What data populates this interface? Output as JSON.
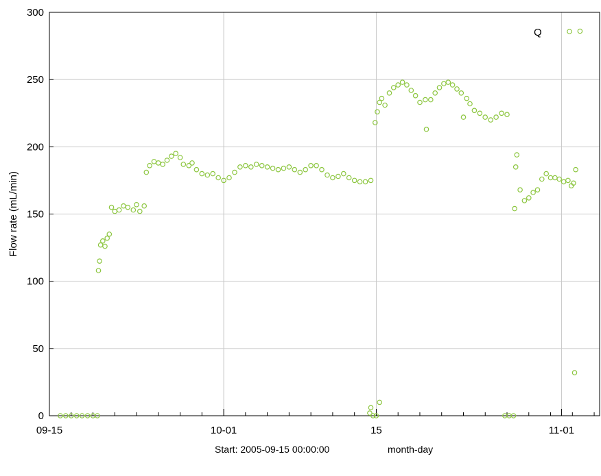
{
  "chart_data": {
    "type": "scatter",
    "title": "",
    "ylabel": "Flow rate (mL/min)",
    "footer": {
      "start_text": "Start: 2005-09-15 00:00:00",
      "unit_text": "month-day"
    },
    "xlim": [
      0,
      50.5
    ],
    "ylim": [
      0,
      300
    ],
    "x_major_ticks": [
      {
        "x": 0,
        "label": "09-15"
      },
      {
        "x": 16,
        "label": "10-01"
      },
      {
        "x": 30,
        "label": "15"
      },
      {
        "x": 47,
        "label": "11-01"
      }
    ],
    "x_minor_ticks": [
      2,
      4,
      6,
      8,
      10,
      12,
      14,
      18,
      20,
      22,
      24,
      26,
      28,
      32,
      34,
      36,
      38,
      40,
      42,
      44,
      46,
      48,
      50
    ],
    "y_ticks": [
      0,
      50,
      100,
      150,
      200,
      250,
      300
    ],
    "grid": true,
    "legend": {
      "position": "top-right"
    },
    "marker_color": "#8cc63f",
    "series": [
      {
        "name": "Q",
        "points": [
          [
            1.0,
            0
          ],
          [
            1.5,
            0
          ],
          [
            2.0,
            0
          ],
          [
            2.5,
            0
          ],
          [
            3.0,
            0
          ],
          [
            3.5,
            0
          ],
          [
            4.0,
            0
          ],
          [
            4.4,
            0
          ],
          [
            4.5,
            108
          ],
          [
            4.6,
            115
          ],
          [
            4.7,
            127
          ],
          [
            4.9,
            130
          ],
          [
            5.1,
            126
          ],
          [
            5.3,
            132
          ],
          [
            5.5,
            135
          ],
          [
            5.7,
            155
          ],
          [
            6.0,
            152
          ],
          [
            6.4,
            153
          ],
          [
            6.8,
            156
          ],
          [
            7.2,
            155
          ],
          [
            7.7,
            153
          ],
          [
            8.0,
            157
          ],
          [
            8.3,
            152
          ],
          [
            8.7,
            156
          ],
          [
            8.9,
            181
          ],
          [
            9.2,
            186
          ],
          [
            9.6,
            189
          ],
          [
            10.0,
            188
          ],
          [
            10.4,
            187
          ],
          [
            10.8,
            190
          ],
          [
            11.2,
            193
          ],
          [
            11.6,
            195
          ],
          [
            12.0,
            192
          ],
          [
            12.3,
            187
          ],
          [
            12.8,
            186
          ],
          [
            13.1,
            188
          ],
          [
            13.5,
            183
          ],
          [
            14.0,
            180
          ],
          [
            14.5,
            179
          ],
          [
            15.0,
            180
          ],
          [
            15.5,
            177
          ],
          [
            16.0,
            175
          ],
          [
            16.5,
            177
          ],
          [
            17.0,
            181
          ],
          [
            17.5,
            185
          ],
          [
            18.0,
            186
          ],
          [
            18.5,
            185
          ],
          [
            19.0,
            187
          ],
          [
            19.5,
            186
          ],
          [
            20.0,
            185
          ],
          [
            20.5,
            184
          ],
          [
            21.0,
            183
          ],
          [
            21.5,
            184
          ],
          [
            22.0,
            185
          ],
          [
            22.5,
            183
          ],
          [
            23.0,
            181
          ],
          [
            23.5,
            183
          ],
          [
            24.0,
            186
          ],
          [
            24.5,
            186
          ],
          [
            25.0,
            183
          ],
          [
            25.5,
            179
          ],
          [
            26.0,
            177
          ],
          [
            26.5,
            178
          ],
          [
            27.0,
            180
          ],
          [
            27.5,
            177
          ],
          [
            28.0,
            175
          ],
          [
            28.5,
            174
          ],
          [
            29.0,
            174
          ],
          [
            29.5,
            175
          ],
          [
            29.4,
            2
          ],
          [
            29.5,
            6
          ],
          [
            29.7,
            0
          ],
          [
            30.0,
            0
          ],
          [
            30.3,
            10
          ],
          [
            29.9,
            218
          ],
          [
            30.1,
            226
          ],
          [
            30.3,
            233
          ],
          [
            30.5,
            236
          ],
          [
            30.8,
            231
          ],
          [
            31.2,
            240
          ],
          [
            31.6,
            244
          ],
          [
            32.0,
            246
          ],
          [
            32.4,
            248
          ],
          [
            32.8,
            246
          ],
          [
            33.2,
            242
          ],
          [
            33.6,
            238
          ],
          [
            34.0,
            233
          ],
          [
            34.5,
            235
          ],
          [
            34.6,
            213
          ],
          [
            35.0,
            235
          ],
          [
            35.4,
            240
          ],
          [
            35.8,
            244
          ],
          [
            36.2,
            247
          ],
          [
            36.6,
            248
          ],
          [
            37.0,
            246
          ],
          [
            37.4,
            243
          ],
          [
            37.8,
            240
          ],
          [
            38.0,
            222
          ],
          [
            38.3,
            236
          ],
          [
            38.6,
            232
          ],
          [
            39.0,
            227
          ],
          [
            39.5,
            225
          ],
          [
            40.0,
            222
          ],
          [
            40.5,
            220
          ],
          [
            41.0,
            222
          ],
          [
            41.5,
            225
          ],
          [
            42.0,
            224
          ],
          [
            41.8,
            0
          ],
          [
            42.2,
            0
          ],
          [
            42.6,
            0
          ],
          [
            42.7,
            154
          ],
          [
            42.8,
            185
          ],
          [
            42.9,
            194
          ],
          [
            43.2,
            168
          ],
          [
            43.6,
            160
          ],
          [
            44.0,
            162
          ],
          [
            44.4,
            166
          ],
          [
            44.8,
            168
          ],
          [
            45.2,
            176
          ],
          [
            45.6,
            180
          ],
          [
            46.0,
            177
          ],
          [
            46.4,
            177
          ],
          [
            46.8,
            176
          ],
          [
            47.2,
            174
          ],
          [
            47.6,
            175
          ],
          [
            47.9,
            171
          ],
          [
            48.1,
            173
          ],
          [
            48.2,
            32
          ],
          [
            48.3,
            183
          ],
          [
            48.7,
            286
          ]
        ]
      }
    ]
  }
}
